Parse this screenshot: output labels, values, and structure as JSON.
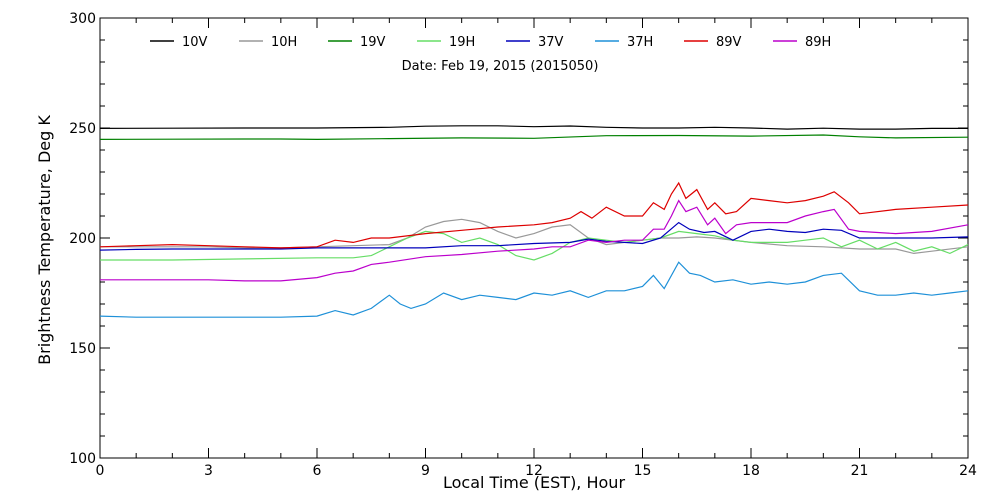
{
  "chart_data": {
    "type": "line",
    "title": "",
    "annotation": "Date: Feb 19, 2015 (2015050)",
    "xlabel": "Local Time (EST), Hour",
    "ylabel": "Brightness Temperature, Deg K",
    "xlim": [
      0,
      24
    ],
    "ylim": [
      100,
      300
    ],
    "xticks": [
      0,
      3,
      6,
      9,
      12,
      15,
      18,
      21,
      24
    ],
    "yticks": [
      100,
      150,
      200,
      250,
      300
    ],
    "grid": false,
    "legend_position": "top",
    "series": [
      {
        "name": "10V",
        "color": "#000000",
        "x": [
          0,
          2,
          4,
          6,
          8,
          9,
          10,
          11,
          12,
          13,
          14,
          15,
          16,
          17,
          18,
          19,
          20,
          21,
          22,
          23,
          24
        ],
        "y": [
          249.8,
          249.9,
          250,
          250,
          250.3,
          250.8,
          251,
          251,
          250.6,
          250.9,
          250.3,
          250,
          250,
          250.3,
          250,
          249.5,
          249.9,
          249.5,
          249.5,
          249.8,
          249.8
        ]
      },
      {
        "name": "10H",
        "color": "#999999",
        "x": [
          0,
          1,
          2,
          3,
          4,
          5,
          6,
          7,
          8,
          8.5,
          9,
          9.5,
          10,
          10.5,
          11,
          11.5,
          12,
          12.5,
          13,
          13.5,
          14,
          15,
          15.5,
          16,
          16.5,
          17,
          18,
          19,
          20,
          21,
          22,
          22.5,
          23,
          24
        ],
        "y": [
          196,
          196,
          196,
          196,
          195.5,
          195.5,
          196,
          196.5,
          197,
          200,
          205,
          207.5,
          208.5,
          207,
          203,
          200,
          202,
          205,
          206,
          200,
          197,
          199,
          200,
          200,
          200.5,
          200,
          198,
          196.5,
          196,
          195,
          195,
          193,
          194,
          196
        ]
      },
      {
        "name": "19V",
        "color": "#008000",
        "x": [
          0,
          2,
          4,
          5,
          6,
          8,
          10,
          12,
          14,
          16,
          18,
          20,
          21,
          22,
          24
        ],
        "y": [
          244.8,
          244.9,
          245,
          245,
          244.8,
          245.2,
          245.5,
          245.3,
          246.5,
          246.6,
          246.3,
          246.8,
          246,
          245.5,
          245.8
        ]
      },
      {
        "name": "19H",
        "color": "#66dd66",
        "x": [
          0,
          2,
          4,
          6,
          7,
          7.5,
          8,
          8.5,
          9,
          9.5,
          10,
          10.5,
          11,
          11.5,
          12,
          12.5,
          13,
          13.5,
          14,
          14.5,
          15,
          15.5,
          16,
          16.5,
          17,
          17.5,
          18,
          18.5,
          19,
          19.5,
          20,
          20.5,
          21,
          21.5,
          22,
          22.5,
          23,
          23.5,
          24
        ],
        "y": [
          190,
          190,
          190.5,
          191,
          191,
          192,
          196,
          200,
          203,
          202,
          198,
          200,
          197,
          192,
          190,
          193,
          198,
          200,
          199,
          198,
          199,
          200,
          203,
          202,
          201,
          199,
          198,
          198,
          198,
          199,
          200,
          196,
          199,
          195,
          198,
          194,
          196,
          193,
          197
        ]
      },
      {
        "name": "37V",
        "color": "#0000bb",
        "x": [
          0,
          1,
          2,
          3,
          4,
          5,
          6,
          7,
          8,
          9,
          10,
          11,
          12,
          13,
          13.5,
          14,
          15,
          15.5,
          16,
          16.3,
          16.7,
          17,
          17.5,
          18,
          18.5,
          19,
          19.5,
          20,
          20.5,
          21,
          22,
          23,
          24
        ],
        "y": [
          194.5,
          194.8,
          195,
          195,
          195,
          195,
          195.5,
          195.5,
          195.5,
          195.5,
          196.5,
          196.5,
          197.5,
          198,
          199.5,
          198.5,
          197.5,
          200,
          207,
          204,
          202.5,
          203,
          199,
          203,
          204,
          203,
          202.5,
          204,
          203.5,
          200,
          200,
          200,
          200.5
        ]
      },
      {
        "name": "37H",
        "color": "#1e90d8",
        "x": [
          0,
          1,
          2,
          3,
          4,
          5,
          6,
          6.5,
          7,
          7.5,
          8,
          8.3,
          8.6,
          9,
          9.5,
          10,
          10.5,
          11,
          11.5,
          12,
          12.5,
          13,
          13.5,
          14,
          14.5,
          15,
          15.3,
          15.6,
          16,
          16.3,
          16.6,
          17,
          17.5,
          18,
          18.5,
          19,
          19.5,
          20,
          20.5,
          21,
          21.5,
          22,
          22.5,
          23,
          23.5,
          24
        ],
        "y": [
          164.5,
          164,
          164,
          164,
          164,
          164,
          164.5,
          167,
          165,
          168,
          174,
          170,
          168,
          170,
          175,
          172,
          174,
          173,
          172,
          175,
          174,
          176,
          173,
          176,
          176,
          178,
          183,
          177,
          189,
          184,
          183,
          180,
          181,
          179,
          180,
          179,
          180,
          183,
          184,
          176,
          174,
          174,
          175,
          174,
          175,
          176
        ]
      },
      {
        "name": "89V",
        "color": "#dd0000",
        "x": [
          0,
          1,
          2,
          3,
          4,
          5,
          6,
          6.5,
          7,
          7.5,
          8,
          9,
          10,
          11,
          12,
          12.5,
          13,
          13.3,
          13.6,
          14,
          14.5,
          15,
          15.3,
          15.6,
          15.8,
          16,
          16.2,
          16.5,
          16.8,
          17,
          17.3,
          17.6,
          18,
          18.5,
          19,
          19.5,
          20,
          20.3,
          20.7,
          21,
          22,
          23,
          24
        ],
        "y": [
          196,
          196.5,
          197,
          196.5,
          196,
          195.5,
          196,
          199,
          198,
          200,
          200,
          202,
          203.5,
          205,
          206,
          207,
          209,
          212,
          209,
          214,
          210,
          210,
          216,
          213,
          220,
          225,
          218,
          222,
          213,
          216,
          211,
          212,
          218,
          217,
          216,
          217,
          219,
          221,
          216,
          211,
          213,
          214,
          215
        ]
      },
      {
        "name": "89H",
        "color": "#bb00cc",
        "x": [
          0,
          1,
          2,
          3,
          4,
          5,
          6,
          6.5,
          7,
          7.5,
          8,
          9,
          10,
          11,
          12,
          12.5,
          13,
          13.5,
          14,
          14.5,
          15,
          15.3,
          15.6,
          15.8,
          16,
          16.2,
          16.5,
          16.8,
          17,
          17.3,
          17.6,
          18,
          18.5,
          19,
          19.5,
          20,
          20.3,
          20.7,
          21,
          22,
          23,
          24
        ],
        "y": [
          181,
          181,
          181,
          181,
          180.5,
          180.5,
          182,
          184,
          185,
          188,
          189,
          191.5,
          192.5,
          194,
          195,
          196,
          196,
          199,
          198,
          199,
          199,
          204,
          204,
          210,
          217,
          212,
          214,
          206,
          209,
          202,
          206,
          207,
          207,
          207,
          210,
          212,
          213,
          204,
          203,
          202,
          203,
          206
        ]
      }
    ]
  }
}
